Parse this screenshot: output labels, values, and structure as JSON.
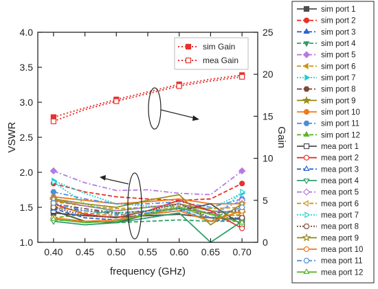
{
  "chart_data": {
    "type": "line",
    "xlabel": "frequency (GHz)",
    "ylabel": "VSWR",
    "y2label": "Gain",
    "xlim": [
      0.375,
      0.725
    ],
    "ylim": [
      1.0,
      4.0
    ],
    "y2lim": [
      0,
      25
    ],
    "xticks": [
      "0.40",
      "0.45",
      "0.50",
      "0.55",
      "0.60",
      "0.65",
      "0.70"
    ],
    "yticks": [
      "1.0",
      "1.5",
      "2.0",
      "2.5",
      "3.0",
      "3.5",
      "4.0"
    ],
    "y2ticks": [
      "0",
      "5",
      "10",
      "15",
      "20",
      "25"
    ],
    "grid": false,
    "legend_position": "right-outside",
    "x": [
      0.4,
      0.45,
      0.5,
      0.55,
      0.6,
      0.65,
      0.7
    ],
    "vswr_series": [
      {
        "name": "sim port 1",
        "values": [
          1.42,
          1.38,
          1.36,
          1.38,
          1.4,
          1.35,
          1.33
        ],
        "color": "#4d4d4d",
        "dash": "solid",
        "marker": "square",
        "filled": true
      },
      {
        "name": "sim port 2",
        "values": [
          1.84,
          1.72,
          1.65,
          1.62,
          1.6,
          1.62,
          1.84
        ],
        "color": "#e8302c",
        "dash": "dashed",
        "marker": "circle",
        "filled": true
      },
      {
        "name": "sim port 3",
        "values": [
          1.5,
          1.45,
          1.42,
          1.45,
          1.48,
          1.42,
          1.45
        ],
        "color": "#2f63c9",
        "dash": "dashdot",
        "marker": "triangle-up",
        "filled": true
      },
      {
        "name": "sim port 4",
        "values": [
          1.32,
          1.3,
          1.28,
          1.3,
          1.32,
          1.3,
          1.3
        ],
        "color": "#2e9e6a",
        "dash": "dashed",
        "marker": "triangle-down",
        "filled": true
      },
      {
        "name": "sim port 5",
        "values": [
          2.02,
          1.85,
          1.74,
          1.75,
          1.7,
          1.68,
          2.02
        ],
        "color": "#b57ae0",
        "dash": "dashdot",
        "marker": "diamond",
        "filled": true
      },
      {
        "name": "sim port 6",
        "values": [
          1.58,
          1.52,
          1.48,
          1.5,
          1.52,
          1.48,
          1.5
        ],
        "color": "#c9961c",
        "dash": "dashed",
        "marker": "triangle-left",
        "filled": true
      },
      {
        "name": "sim port 7",
        "values": [
          1.88,
          1.7,
          1.55,
          1.52,
          1.5,
          1.48,
          1.7
        ],
        "color": "#1ecfcf",
        "dash": "dotted",
        "marker": "triangle-right",
        "filled": true
      },
      {
        "name": "sim port 8",
        "values": [
          1.55,
          1.48,
          1.42,
          1.45,
          1.48,
          1.42,
          1.46
        ],
        "color": "#7a4a3c",
        "dash": "dashdot",
        "marker": "hexagon",
        "filled": true
      },
      {
        "name": "sim port 9",
        "values": [
          1.6,
          1.52,
          1.45,
          1.5,
          1.55,
          1.45,
          1.42
        ],
        "color": "#9b8b1c",
        "dash": "solid",
        "marker": "star",
        "filled": true
      },
      {
        "name": "sim port 10",
        "values": [
          1.65,
          1.6,
          1.55,
          1.58,
          1.62,
          1.55,
          1.55
        ],
        "color": "#ef7a1a",
        "dash": "solid",
        "marker": "circle",
        "filled": true
      },
      {
        "name": "sim port 11",
        "values": [
          1.72,
          1.62,
          1.55,
          1.55,
          1.58,
          1.5,
          1.62
        ],
        "color": "#4d8fd6",
        "dash": "dashdot",
        "marker": "hexagon",
        "filled": true
      },
      {
        "name": "sim port 12",
        "values": [
          1.35,
          1.4,
          1.45,
          1.5,
          1.55,
          1.4,
          1.38
        ],
        "color": "#5cb62a",
        "dash": "dashed",
        "marker": "triangle-up",
        "filled": true
      },
      {
        "name": "mea port 1",
        "values": [
          1.45,
          1.3,
          1.28,
          1.4,
          1.45,
          1.55,
          1.25
        ],
        "color": "#4d4d4d",
        "dash": "solid",
        "marker": "square",
        "filled": false
      },
      {
        "name": "mea port 2",
        "values": [
          1.55,
          1.4,
          1.35,
          1.45,
          1.6,
          1.45,
          1.2
        ],
        "color": "#e8302c",
        "dash": "solid",
        "marker": "circle",
        "filled": false
      },
      {
        "name": "mea port 3",
        "values": [
          1.48,
          1.35,
          1.32,
          1.42,
          1.48,
          1.3,
          1.35
        ],
        "color": "#2f63c9",
        "dash": "dashed",
        "marker": "triangle-up",
        "filled": false
      },
      {
        "name": "mea port 4",
        "values": [
          1.3,
          1.25,
          1.28,
          1.35,
          1.42,
          1.0,
          1.3
        ],
        "color": "#2e9e6a",
        "dash": "solid",
        "marker": "triangle-down",
        "filled": false
      },
      {
        "name": "mea port 5",
        "values": [
          1.62,
          1.52,
          1.45,
          1.5,
          1.55,
          1.4,
          1.6
        ],
        "color": "#b57ae0",
        "dash": "dashdot",
        "marker": "diamond",
        "filled": false
      },
      {
        "name": "mea port 6",
        "values": [
          1.52,
          1.42,
          1.38,
          1.45,
          1.5,
          1.35,
          1.4
        ],
        "color": "#c9961c",
        "dash": "dashed",
        "marker": "triangle-left",
        "filled": false
      },
      {
        "name": "mea port 7",
        "values": [
          1.86,
          1.55,
          1.42,
          1.45,
          1.48,
          1.3,
          1.72
        ],
        "color": "#1ecfcf",
        "dash": "dotted",
        "marker": "triangle-right",
        "filled": false
      },
      {
        "name": "mea port 8",
        "values": [
          1.5,
          1.38,
          1.35,
          1.45,
          1.55,
          1.35,
          1.35
        ],
        "color": "#7a4a3c",
        "dash": "dotted",
        "marker": "hexagon",
        "filled": false
      },
      {
        "name": "mea port 9",
        "values": [
          1.62,
          1.55,
          1.5,
          1.6,
          1.68,
          1.25,
          1.55
        ],
        "color": "#9b8b1c",
        "dash": "solid",
        "marker": "star",
        "filled": false
      },
      {
        "name": "mea port 10",
        "values": [
          1.35,
          1.3,
          1.32,
          1.4,
          1.45,
          1.3,
          1.45
        ],
        "color": "#ef7a1a",
        "dash": "solid",
        "marker": "circle",
        "filled": false
      },
      {
        "name": "mea port 11",
        "values": [
          1.56,
          1.45,
          1.4,
          1.42,
          1.5,
          1.35,
          1.5
        ],
        "color": "#4d8fd6",
        "dash": "dashdot",
        "marker": "hexagon",
        "filled": false
      },
      {
        "name": "mea port 12",
        "values": [
          1.33,
          1.28,
          1.3,
          1.4,
          1.5,
          1.4,
          1.28
        ],
        "color": "#5cb62a",
        "dash": "solid",
        "marker": "triangle-up",
        "filled": false
      }
    ],
    "gain_series": [
      {
        "name": "sim  Gain",
        "x": [
          0.4,
          0.45,
          0.5,
          0.55,
          0.6,
          0.65,
          0.7
        ],
        "values": [
          14.9,
          16.0,
          17.0,
          17.9,
          18.8,
          19.4,
          19.9
        ],
        "color": "#e8302c",
        "marker": "square",
        "filled": true
      },
      {
        "name": "mea Gain",
        "x": [
          0.4,
          0.45,
          0.5,
          0.55,
          0.6,
          0.65,
          0.7
        ],
        "values": [
          14.4,
          15.8,
          16.8,
          17.7,
          18.6,
          19.2,
          19.7
        ],
        "color": "#e8302c",
        "marker": "square",
        "filled": false
      }
    ]
  }
}
